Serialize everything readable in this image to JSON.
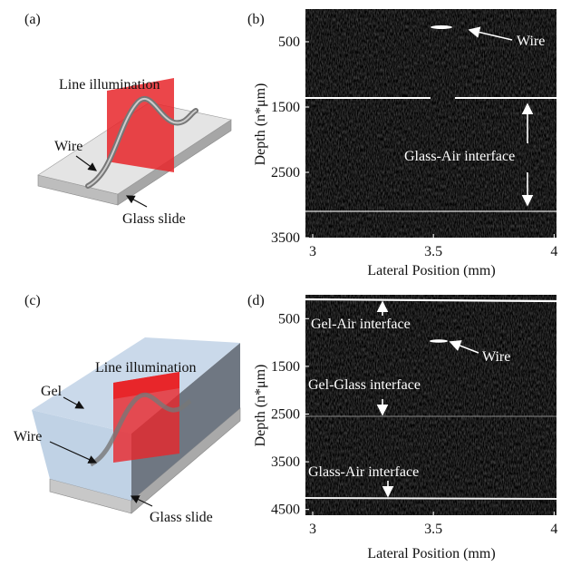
{
  "panel_a": {
    "label": "(a)",
    "line_illumination": "Line illumination",
    "wire": "Wire",
    "glass_slide": "Glass slide"
  },
  "panel_b": {
    "label": "(b)",
    "xlabel": "Lateral Position (mm)",
    "ylabel": "Depth (n*μm)",
    "xlim": [
      2.97,
      4.01
    ],
    "xticks": [
      3,
      3.5,
      4
    ],
    "ylim": [
      0,
      3500
    ],
    "yticks": [
      500,
      1500,
      2500,
      3500
    ],
    "annotations": [
      "Wire",
      "Glass-Air interface"
    ]
  },
  "panel_c": {
    "label": "(c)",
    "line_illumination": "Line illumination",
    "gel": "Gel",
    "wire": "Wire",
    "glass_slide": "Glass slide"
  },
  "panel_d": {
    "label": "(d)",
    "xlabel": "Lateral Position (mm)",
    "ylabel": "Depth (n*μm)",
    "xlim": [
      2.97,
      4.01
    ],
    "xticks": [
      3,
      3.5,
      4
    ],
    "ylim": [
      0,
      4620
    ],
    "yticks": [
      500,
      1500,
      2500,
      3500,
      4500
    ],
    "annotations": [
      "Gel-Air interface",
      "Wire",
      "Gel-Glass interface",
      "Glass-Air interface"
    ]
  }
}
